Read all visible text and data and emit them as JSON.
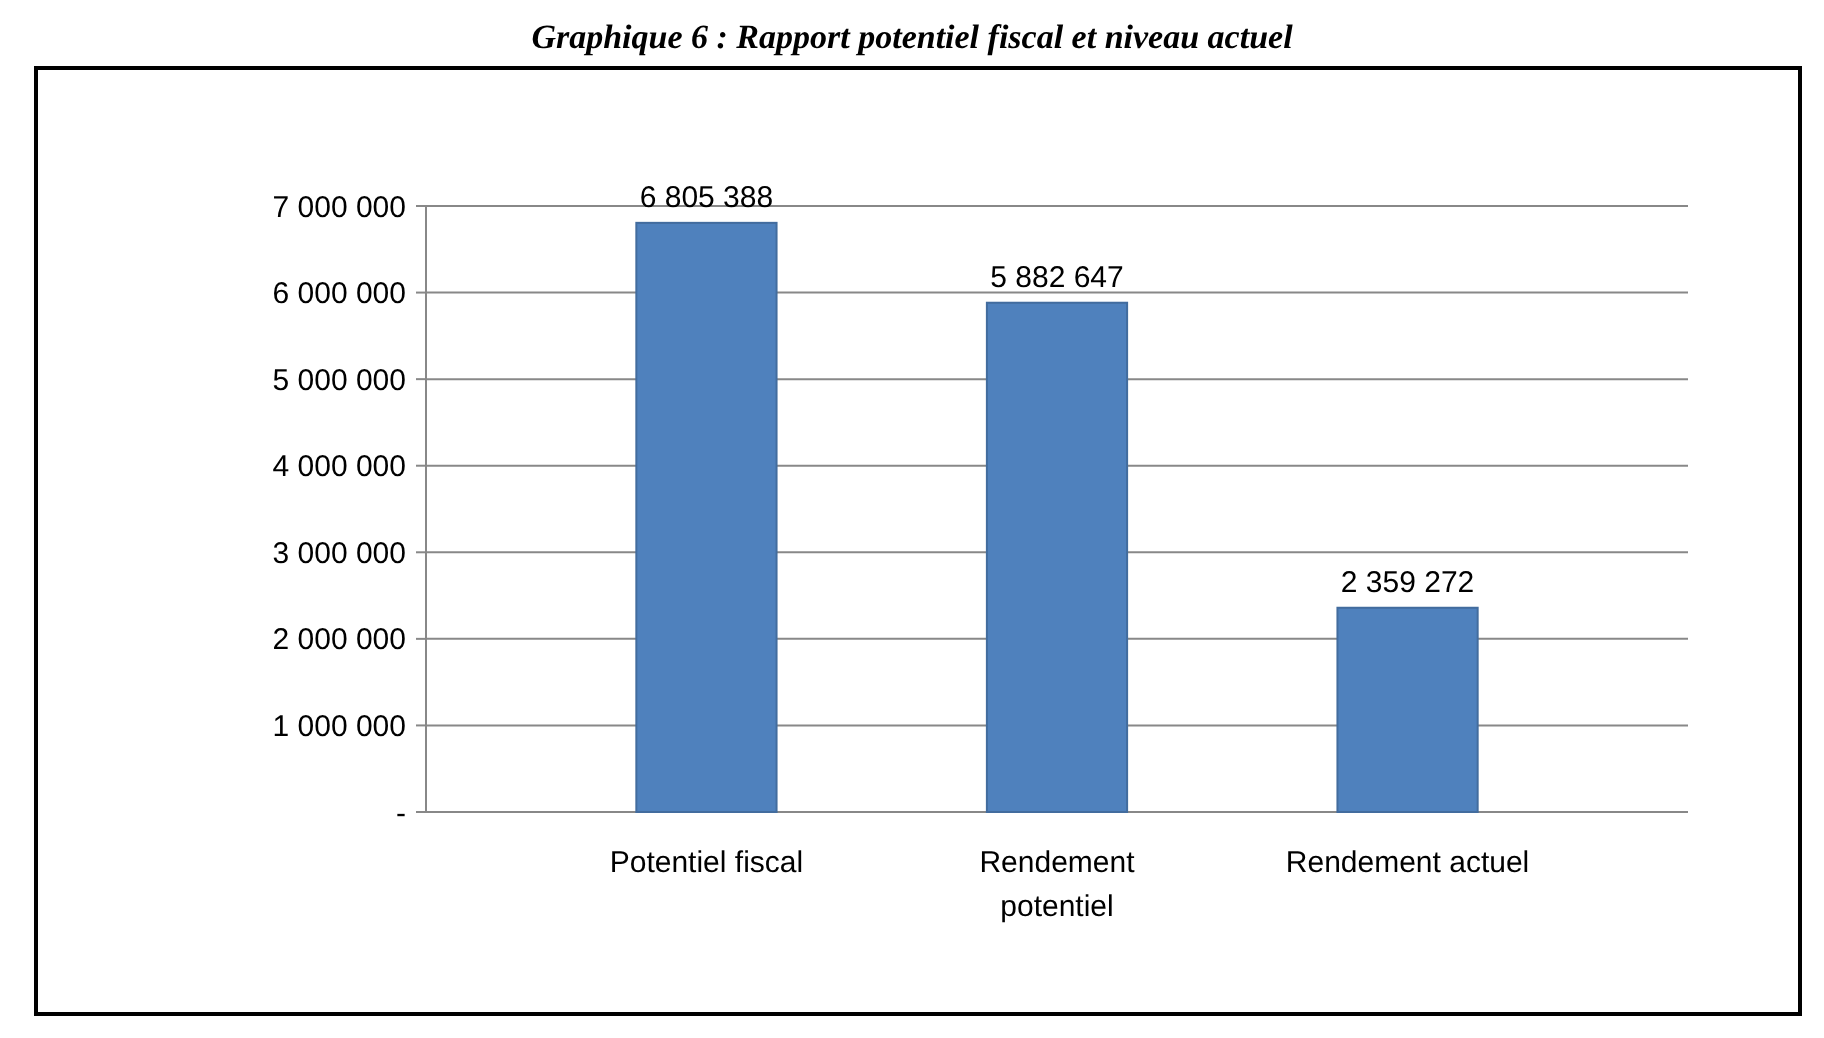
{
  "chart_data": {
    "type": "bar",
    "title": "Graphique 6 : Rapport potentiel fiscal et niveau actuel",
    "categories": [
      "Potentiel fiscal",
      "Rendement potentiel",
      "Rendement actuel"
    ],
    "values": [
      6805388,
      5882647,
      2359272
    ],
    "value_labels": [
      "6 805 388",
      "5 882 647",
      "2 359 272"
    ],
    "color": "#4f81bd",
    "ylim": [
      0,
      7000000
    ],
    "yticks": [
      {
        "value": 0,
        "label": "-"
      },
      {
        "value": 1000000,
        "label": "1 000 000"
      },
      {
        "value": 2000000,
        "label": "2 000 000"
      },
      {
        "value": 3000000,
        "label": "3 000 000"
      },
      {
        "value": 4000000,
        "label": "4 000 000"
      },
      {
        "value": 5000000,
        "label": "5 000 000"
      },
      {
        "value": 6000000,
        "label": "6 000 000"
      },
      {
        "value": 7000000,
        "label": "7 000 000"
      }
    ],
    "grid": "y"
  }
}
